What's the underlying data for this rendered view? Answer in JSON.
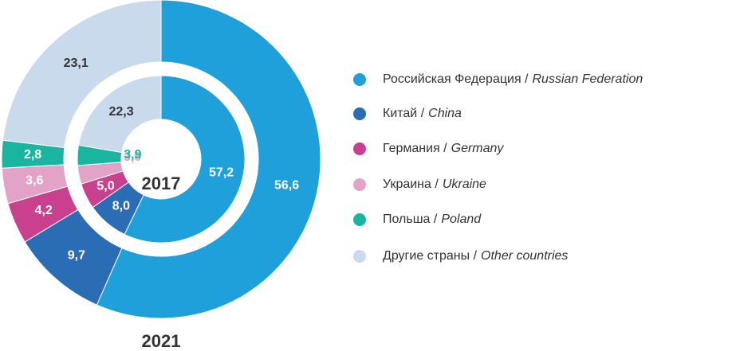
{
  "chart_data": {
    "type": "donut",
    "categories": [
      "Российская Федерация /",
      "Китай /",
      "Германия /",
      "Украина /",
      "Польша /",
      "Другие страны /"
    ],
    "categories_en": [
      "Russian Federation",
      "China",
      "Germany",
      "Ukraine",
      "Poland",
      "Other countries"
    ],
    "colors": [
      "#1fa0db",
      "#2a6db5",
      "#c9408f",
      "#e3a3c8",
      "#19b5a0",
      "#c9daed"
    ],
    "series": [
      {
        "name": "2021",
        "values": [
          56.6,
          9.7,
          4.2,
          3.6,
          2.8,
          23.1
        ],
        "value_labels": [
          "56,6",
          "9,7",
          "4,2",
          "3,6",
          "2,8",
          "23,1"
        ]
      },
      {
        "name": "2017",
        "values": [
          57.2,
          8.0,
          5.0,
          3.6,
          3.9,
          22.3
        ],
        "value_labels": [
          "57,2",
          "8,0",
          "5,0",
          "3,6",
          "3,9",
          "22,3"
        ]
      }
    ]
  }
}
